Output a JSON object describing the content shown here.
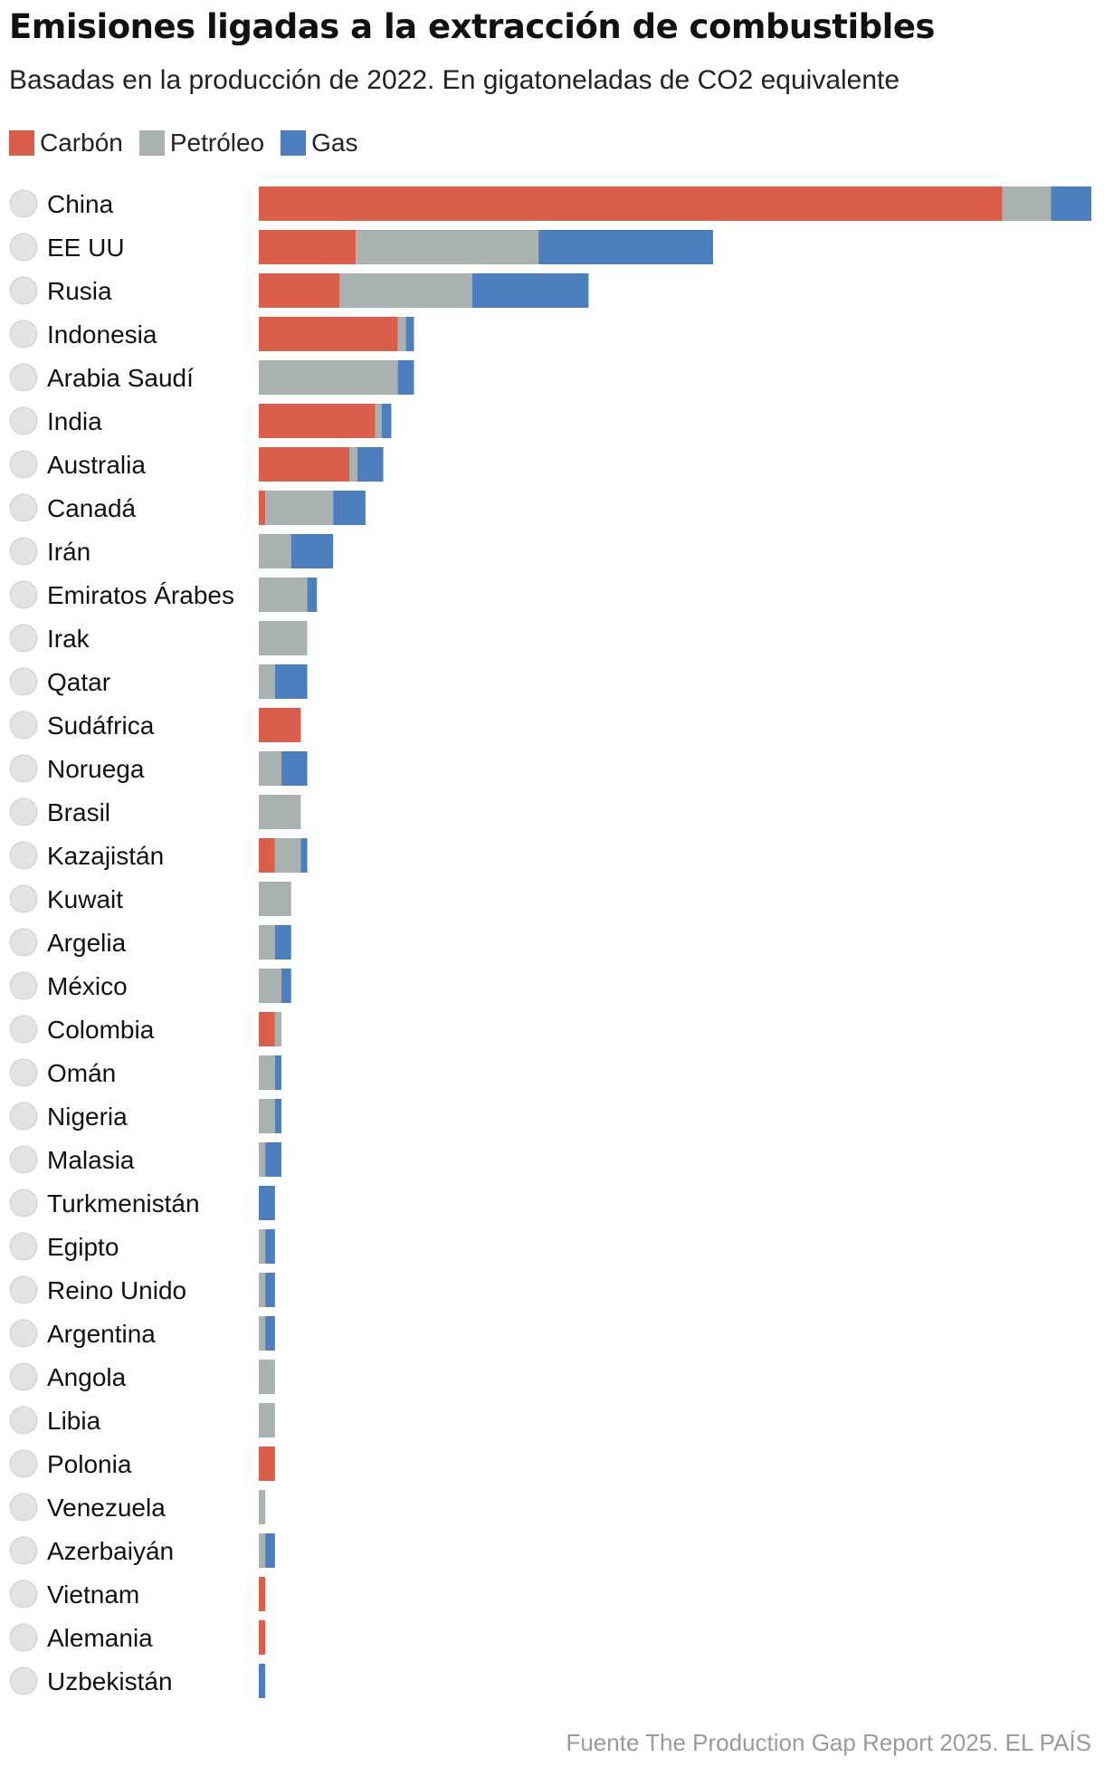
{
  "header": {
    "title": "Emisiones ligadas a la extracción de combustibles",
    "subtitle": "Basadas en la producción de 2022. En gigatoneladas de CO2 equivalente"
  },
  "legend": [
    {
      "label": "Carbón",
      "color": "#d95f4c"
    },
    {
      "label": "Petróleo",
      "color": "#a9b1b1"
    },
    {
      "label": "Gas",
      "color": "#4d7fbf"
    }
  ],
  "source": "Fuente The Production Gap Report 2025. EL PAÍS",
  "chart_data": {
    "type": "bar",
    "orientation": "horizontal",
    "stacked": true,
    "title": "Emisiones ligadas a la extracción de combustibles",
    "subtitle": "Basadas en la producción de 2022. En gigatoneladas de CO2 equivalente",
    "legend_position": "top-left",
    "grid": false,
    "xlim": [
      0,
      5.15
    ],
    "categories": [
      "China",
      "EE UU",
      "Rusia",
      "Indonesia",
      "Arabia Saudí",
      "India",
      "Australia",
      "Canadá",
      "Irán",
      "Emiratos Árabes",
      "Irak",
      "Qatar",
      "Sudáfrica",
      "Noruega",
      "Brasil",
      "Kazajistán",
      "Kuwait",
      "Argelia",
      "México",
      "Colombia",
      "Omán",
      "Nigeria",
      "Malasia",
      "Turkmenistán",
      "Egipto",
      "Reino Unido",
      "Argentina",
      "Angola",
      "Libia",
      "Polonia",
      "Venezuela",
      "Azerbaiyán",
      "Vietnam",
      "Alemania",
      "Uzbekistán"
    ],
    "series": [
      {
        "name": "Carbón",
        "color": "#d95f4c",
        "values": [
          4.6,
          0.6,
          0.5,
          0.86,
          0.0,
          0.72,
          0.56,
          0.04,
          0.0,
          0.0,
          0.0,
          0.0,
          0.26,
          0.0,
          0.0,
          0.1,
          0.0,
          0.0,
          0.0,
          0.1,
          0.0,
          0.0,
          0.0,
          0.0,
          0.0,
          0.0,
          0.0,
          0.0,
          0.0,
          0.1,
          0.0,
          0.0,
          0.04,
          0.04,
          0.0
        ]
      },
      {
        "name": "Petróleo",
        "color": "#a9b1b1",
        "values": [
          0.3,
          1.13,
          0.82,
          0.05,
          0.86,
          0.04,
          0.05,
          0.42,
          0.2,
          0.3,
          0.3,
          0.1,
          0.0,
          0.14,
          0.26,
          0.16,
          0.2,
          0.1,
          0.14,
          0.04,
          0.1,
          0.1,
          0.04,
          0.0,
          0.04,
          0.04,
          0.04,
          0.1,
          0.1,
          0.0,
          0.04,
          0.04,
          0.0,
          0.0,
          0.0
        ]
      },
      {
        "name": "Gas",
        "color": "#4d7fbf",
        "values": [
          0.25,
          1.08,
          0.72,
          0.05,
          0.1,
          0.06,
          0.16,
          0.2,
          0.26,
          0.06,
          0.0,
          0.2,
          0.0,
          0.16,
          0.0,
          0.04,
          0.0,
          0.1,
          0.06,
          0.0,
          0.04,
          0.04,
          0.1,
          0.1,
          0.06,
          0.06,
          0.06,
          0.0,
          0.0,
          0.0,
          0.0,
          0.06,
          0.0,
          0.0,
          0.04
        ]
      }
    ]
  }
}
